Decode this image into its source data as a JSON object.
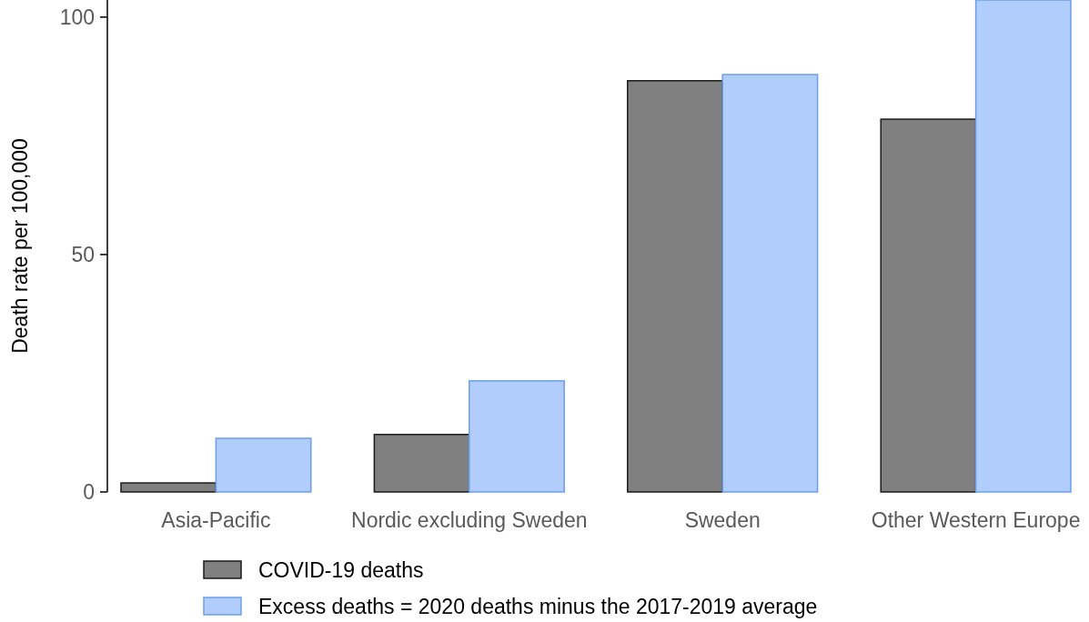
{
  "chart_data": {
    "type": "bar",
    "ylabel": "Death rate per 100,000",
    "categories": [
      "Asia-Pacific",
      "Nordic excluding Sweden",
      "Sweden",
      "Other Western Europe"
    ],
    "series": [
      {
        "name": "COVID-19 deaths",
        "color": "#808080",
        "values": [
          1.9,
          12.1,
          86.6,
          78.5
        ]
      },
      {
        "name": "Excess deaths = 2020 deaths minus the 2017-2019 average",
        "color": "#b0cdfc",
        "values": [
          11.3,
          23.4,
          87.9,
          103.6
        ]
      }
    ],
    "ylim": [
      0,
      103.6
    ],
    "yticks": [
      0,
      50,
      100
    ],
    "grid": false,
    "legend": "bottom"
  }
}
